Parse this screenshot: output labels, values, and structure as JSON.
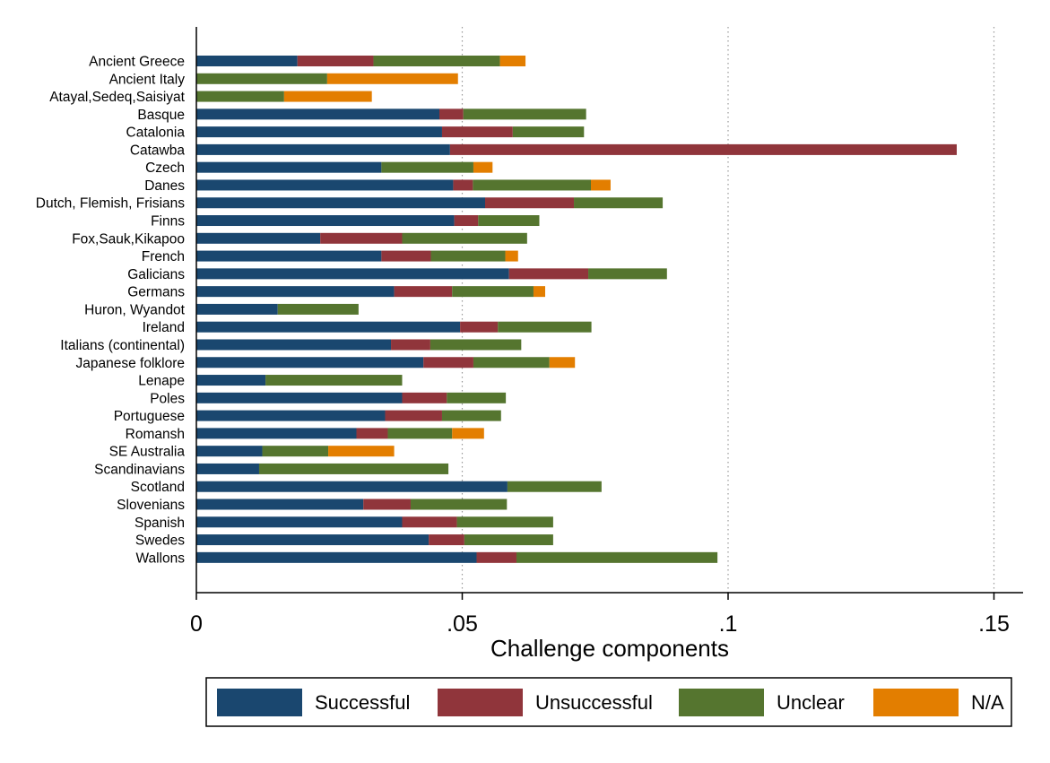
{
  "chart_data": {
    "type": "bar",
    "orientation": "horizontal",
    "stacked": true,
    "xlabel": "Challenge components",
    "xlim": [
      0,
      0.155
    ],
    "xticks": [
      {
        "value": 0,
        "label": "0"
      },
      {
        "value": 0.05,
        "label": ".05"
      },
      {
        "value": 0.1,
        "label": ".1"
      },
      {
        "value": 0.15,
        "label": ".15"
      }
    ],
    "grid": "vertical dotted at .05, .1, .15",
    "legend_position": "bottom",
    "categories": [
      "Ancient Greece",
      "Ancient Italy",
      "Atayal,Sedeq,Saisiyat",
      "Basque",
      "Catalonia",
      "Catawba",
      "Czech",
      "Danes",
      "Dutch, Flemish, Frisians",
      "Finns",
      "Fox,Sauk,Kikapoo",
      "French",
      "Galicians",
      "Germans",
      "Huron, Wyandot",
      "Ireland",
      "Italians (continental)",
      "Japanese folklore",
      "Lenape",
      "Poles",
      "Portuguese",
      "Romansh",
      "SE Australia",
      "Scandinavians",
      "Scotland",
      "Slovenians",
      "Spanish",
      "Swedes",
      "Wallons"
    ],
    "series": [
      {
        "name": "Successful",
        "color": "#1a476f",
        "values": [
          0.019,
          0,
          0,
          0.0457,
          0.0462,
          0.0477,
          0.0348,
          0.0483,
          0.0543,
          0.0485,
          0.0233,
          0.0348,
          0.0588,
          0.0372,
          0.0153,
          0.0496,
          0.0366,
          0.0427,
          0.013,
          0.0387,
          0.0355,
          0.0301,
          0.0124,
          0.0118,
          0.0585,
          0.0314,
          0.0387,
          0.0437,
          0.0527
        ]
      },
      {
        "name": "Unsuccessful",
        "color": "#90353b",
        "values": [
          0.0143,
          0,
          0,
          0.0045,
          0.0133,
          0.0953,
          0,
          0.0037,
          0.0167,
          0.0045,
          0.0154,
          0.0093,
          0.0149,
          0.0109,
          0,
          0.0071,
          0.0074,
          0.0094,
          0,
          0.0084,
          0.0107,
          0.0059,
          0,
          0,
          0,
          0.0089,
          0.0103,
          0.0067,
          0.0075
        ]
      },
      {
        "name": "Unclear",
        "color": "#55752f",
        "values": [
          0.0238,
          0.0246,
          0.0165,
          0.0231,
          0.0134,
          0,
          0.0173,
          0.0222,
          0.0167,
          0.0115,
          0.0235,
          0.014,
          0.0148,
          0.0153,
          0.0152,
          0.0176,
          0.0171,
          0.0143,
          0.0257,
          0.0111,
          0.0111,
          0.0121,
          0.0124,
          0.0356,
          0.0177,
          0.0181,
          0.0181,
          0.0167,
          0.0378
        ]
      },
      {
        "name": "N/A",
        "color": "#e37e00",
        "values": [
          0.0048,
          0.0246,
          0.0165,
          0,
          0,
          0,
          0.0036,
          0.0037,
          0,
          0,
          0,
          0.0024,
          0,
          0.0022,
          0,
          0,
          0,
          0.0048,
          0,
          0,
          0,
          0.006,
          0.0124,
          0,
          0,
          0,
          0,
          0,
          0
        ]
      }
    ]
  }
}
